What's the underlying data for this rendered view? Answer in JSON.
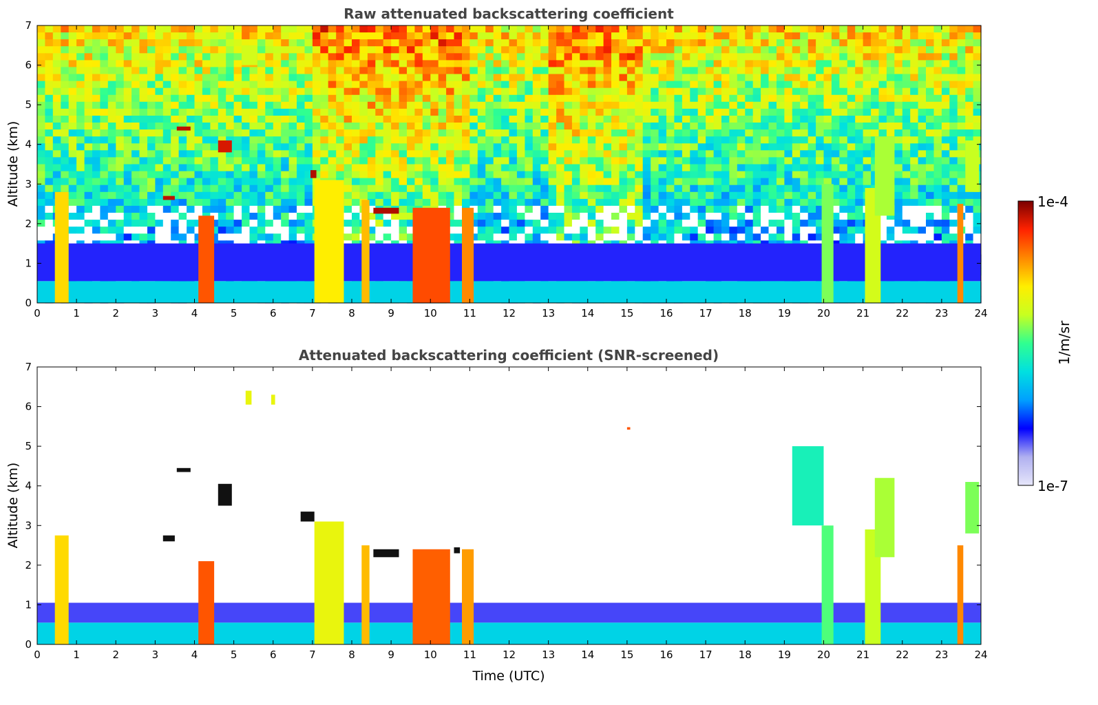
{
  "chart_data": [
    {
      "type": "heatmap",
      "title": "Raw attenuated backscattering coefficient",
      "xlabel": "",
      "ylabel": "Altitude (km)",
      "xlim": [
        0,
        24
      ],
      "ylim": [
        0,
        7
      ],
      "x_ticks": [
        "0",
        "1",
        "2",
        "3",
        "4",
        "5",
        "6",
        "7",
        "8",
        "9",
        "10",
        "11",
        "12",
        "13",
        "14",
        "15",
        "16",
        "17",
        "18",
        "19",
        "20",
        "21",
        "22",
        "23",
        "24"
      ],
      "y_ticks": [
        "0",
        "1",
        "2",
        "3",
        "4",
        "5",
        "6",
        "7"
      ],
      "screened": false,
      "features": [
        {
          "name": "aerosol-layer",
          "x0": 0,
          "x1": 24,
          "y0": 0,
          "y1": 0.55,
          "level": 0.38
        },
        {
          "name": "boundary-layer-blue",
          "x0": 0,
          "x1": 24,
          "y0": 0.55,
          "y1": 1.5,
          "level": 0.18
        },
        {
          "name": "cloud-col-1",
          "x0": 0.45,
          "x1": 0.8,
          "y0": 0,
          "y1": 2.8,
          "level": 0.72
        },
        {
          "name": "cloud-col-2",
          "x0": 4.1,
          "x1": 4.5,
          "y0": 0,
          "y1": 2.2,
          "level": 0.85
        },
        {
          "name": "cloud-col-3",
          "x0": 7.05,
          "x1": 7.8,
          "y0": 0,
          "y1": 3.1,
          "level": 0.7
        },
        {
          "name": "cloud-col-4",
          "x0": 8.25,
          "x1": 8.45,
          "y0": 0,
          "y1": 2.6,
          "level": 0.75
        },
        {
          "name": "cloud-col-5",
          "x0": 9.55,
          "x1": 10.5,
          "y0": 0,
          "y1": 2.4,
          "level": 0.86
        },
        {
          "name": "cloud-col-6",
          "x0": 10.8,
          "x1": 11.1,
          "y0": 0,
          "y1": 2.4,
          "level": 0.8
        },
        {
          "name": "cloud-col-7",
          "x0": 19.95,
          "x1": 20.25,
          "y0": 0,
          "y1": 3.0,
          "level": 0.55
        },
        {
          "name": "cloud-col-8",
          "x0": 21.05,
          "x1": 21.45,
          "y0": 0,
          "y1": 2.9,
          "level": 0.62
        },
        {
          "name": "cloud-col-9",
          "x0": 23.4,
          "x1": 23.55,
          "y0": 0,
          "y1": 2.5,
          "level": 0.8
        },
        {
          "name": "cirrus-1",
          "x0": 5.2,
          "x1": 5.6,
          "y0": 6.0,
          "y1": 6.5,
          "level": 0.62
        },
        {
          "name": "cirrus-2",
          "x0": 6.95,
          "x1": 7.1,
          "y0": 3.15,
          "y1": 3.35,
          "level": 0.96
        },
        {
          "name": "cloud-thin-1",
          "x0": 8.55,
          "x1": 9.2,
          "y0": 2.25,
          "y1": 2.4,
          "level": 0.96
        },
        {
          "name": "cloud-thin-2",
          "x0": 3.55,
          "x1": 3.9,
          "y0": 4.35,
          "y1": 4.45,
          "level": 0.95
        },
        {
          "name": "cloud-thin-3",
          "x0": 4.6,
          "x1": 4.95,
          "y0": 3.8,
          "y1": 4.1,
          "level": 0.93
        },
        {
          "name": "cloud-thin-4",
          "x0": 3.2,
          "x1": 3.5,
          "y0": 2.6,
          "y1": 2.7,
          "level": 0.95
        },
        {
          "name": "cirrus-3",
          "x0": 21.3,
          "x1": 21.8,
          "y0": 2.2,
          "y1": 4.2,
          "level": 0.58
        },
        {
          "name": "cirrus-4",
          "x0": 23.6,
          "x1": 23.95,
          "y0": 2.8,
          "y1": 4.1,
          "level": 0.6
        }
      ]
    },
    {
      "type": "heatmap",
      "title": "Attenuated backscattering coefficient (SNR-screened)",
      "xlabel": "Time (UTC)",
      "ylabel": "Altitude (km)",
      "xlim": [
        0,
        24
      ],
      "ylim": [
        0,
        7
      ],
      "x_ticks": [
        "0",
        "1",
        "2",
        "3",
        "4",
        "5",
        "6",
        "7",
        "8",
        "9",
        "10",
        "11",
        "12",
        "13",
        "14",
        "15",
        "16",
        "17",
        "18",
        "19",
        "20",
        "21",
        "22",
        "23",
        "24"
      ],
      "y_ticks": [
        "0",
        "1",
        "2",
        "3",
        "4",
        "5",
        "6",
        "7"
      ],
      "screened": true,
      "features": [
        {
          "name": "aerosol-layer",
          "x0": 0,
          "x1": 24,
          "y0": 0,
          "y1": 0.55,
          "level": 0.38
        },
        {
          "name": "boundary-layer-blue",
          "x0": 0,
          "x1": 24,
          "y0": 0.55,
          "y1": 1.05,
          "level": 0.16
        },
        {
          "name": "cloud-col-1",
          "x0": 0.45,
          "x1": 0.8,
          "y0": 0,
          "y1": 2.75,
          "level": 0.72
        },
        {
          "name": "cloud-col-2",
          "x0": 4.1,
          "x1": 4.5,
          "y0": 0,
          "y1": 2.1,
          "level": 0.85
        },
        {
          "name": "cloud-col-3",
          "x0": 7.05,
          "x1": 7.8,
          "y0": 0,
          "y1": 3.1,
          "level": 0.66
        },
        {
          "name": "cloud-col-4",
          "x0": 8.25,
          "x1": 8.45,
          "y0": 0,
          "y1": 2.5,
          "level": 0.75
        },
        {
          "name": "cloud-col-5",
          "x0": 9.55,
          "x1": 10.5,
          "y0": 0,
          "y1": 2.4,
          "level": 0.84
        },
        {
          "name": "cloud-col-6",
          "x0": 10.8,
          "x1": 11.1,
          "y0": 0,
          "y1": 2.4,
          "level": 0.78
        },
        {
          "name": "cloud-col-7",
          "x0": 19.95,
          "x1": 20.25,
          "y0": 0,
          "y1": 3.0,
          "level": 0.52
        },
        {
          "name": "cloud-col-8",
          "x0": 21.05,
          "x1": 21.45,
          "y0": 0,
          "y1": 2.9,
          "level": 0.6
        },
        {
          "name": "cloud-col-9",
          "x0": 23.4,
          "x1": 23.55,
          "y0": 0,
          "y1": 2.5,
          "level": 0.8
        },
        {
          "name": "cirrus-1",
          "x0": 5.3,
          "x1": 5.45,
          "y0": 6.05,
          "y1": 6.4,
          "level": 0.66
        },
        {
          "name": "cirrus-1b",
          "x0": 5.95,
          "x1": 6.05,
          "y0": 6.05,
          "y1": 6.3,
          "level": 0.66
        },
        {
          "name": "cloud-black-1",
          "x0": 6.7,
          "x1": 7.05,
          "y0": 3.1,
          "y1": 3.35,
          "level": -1
        },
        {
          "name": "cloud-black-2",
          "x0": 8.55,
          "x1": 9.2,
          "y0": 2.2,
          "y1": 2.4,
          "level": -1
        },
        {
          "name": "cloud-black-3",
          "x0": 3.55,
          "x1": 3.9,
          "y0": 4.35,
          "y1": 4.45,
          "level": -1
        },
        {
          "name": "cloud-black-4",
          "x0": 3.2,
          "x1": 3.5,
          "y0": 2.6,
          "y1": 2.75,
          "level": -1
        },
        {
          "name": "cloud-black-5",
          "x0": 4.6,
          "x1": 4.95,
          "y0": 3.5,
          "y1": 4.05,
          "level": -1
        },
        {
          "name": "cloud-black-6",
          "x0": 10.6,
          "x1": 10.75,
          "y0": 2.3,
          "y1": 2.45,
          "level": -1
        },
        {
          "name": "cirrus-3",
          "x0": 19.2,
          "x1": 20.0,
          "y0": 3.0,
          "y1": 5.0,
          "level": 0.45
        },
        {
          "name": "cirrus-4",
          "x0": 21.3,
          "x1": 21.8,
          "y0": 2.2,
          "y1": 4.2,
          "level": 0.58
        },
        {
          "name": "cirrus-5",
          "x0": 23.6,
          "x1": 23.95,
          "y0": 2.8,
          "y1": 4.1,
          "level": 0.55
        },
        {
          "name": "speck-1",
          "x0": 15.0,
          "x1": 15.08,
          "y0": 5.42,
          "y1": 5.48,
          "level": 0.85
        }
      ]
    }
  ],
  "colorbar": {
    "max_label": "1e-4",
    "min_label": "1e-7",
    "unit_label": "1/m/sr",
    "colors": [
      "#e6e6fa",
      "#b0b0f0",
      "#0000ff",
      "#00a0ff",
      "#00e0e0",
      "#30ff90",
      "#c8ff20",
      "#ffee00",
      "#ff8800",
      "#ff2200",
      "#7a0000"
    ]
  }
}
